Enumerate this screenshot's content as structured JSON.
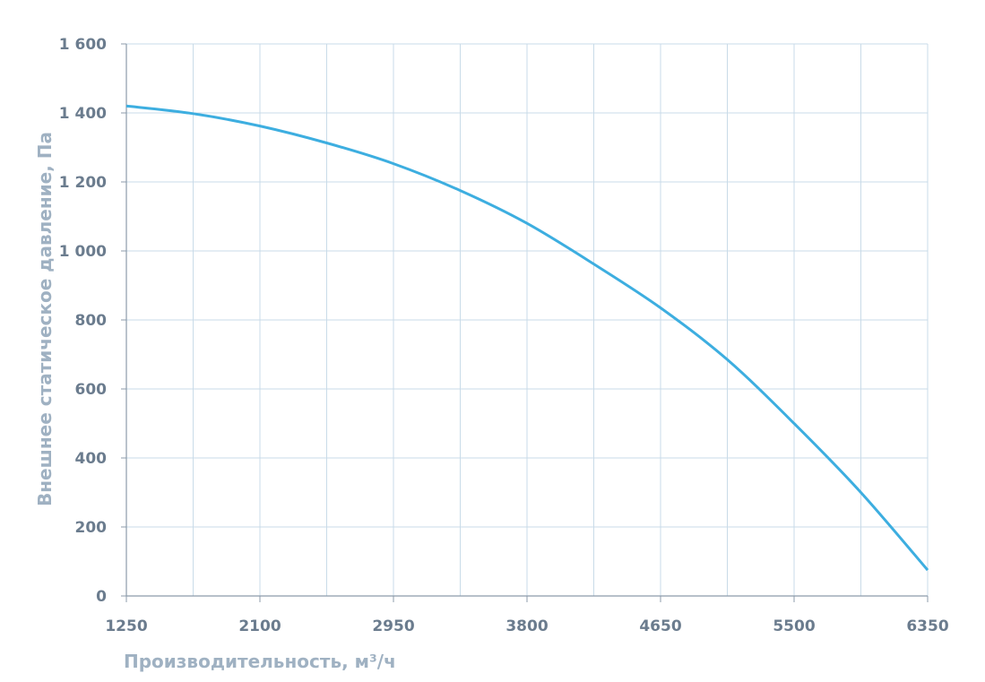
{
  "chart_data": {
    "type": "line",
    "xlabel": "Производительность, м³/ч",
    "ylabel": "Внешнее статическое давление, Па",
    "xlim": [
      1250,
      6350
    ],
    "ylim": [
      0,
      1600
    ],
    "x_ticks": [
      1250,
      2100,
      2950,
      3800,
      4650,
      5500,
      6350
    ],
    "x_tick_labels": [
      "1250",
      "2100",
      "2950",
      "3800",
      "4650",
      "5500",
      "6350"
    ],
    "y_ticks": [
      0,
      200,
      400,
      600,
      800,
      1000,
      1200,
      1400,
      1600
    ],
    "y_tick_labels": [
      "0",
      "200",
      "400",
      "600",
      "800",
      "1 000",
      "1 200",
      "1 400",
      "1 600"
    ],
    "grid": true,
    "line_color": "#3daee0",
    "grid_color": "#c9dbe8",
    "axis_color": "#8c9bab",
    "series": [
      {
        "x": [
          1250,
          1675,
          2100,
          2525,
          2950,
          3375,
          3800,
          4225,
          4650,
          5075,
          5500,
          5925,
          6350
        ],
        "y": [
          1420,
          1398,
          1362,
          1313,
          1253,
          1175,
          1080,
          962,
          835,
          685,
          500,
          300,
          75
        ]
      }
    ]
  }
}
